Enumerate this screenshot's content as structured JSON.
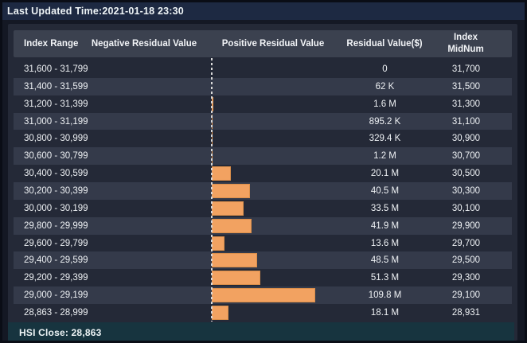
{
  "title_bar": {
    "last_updated": "Last Updated Time:2021-01-18 23:30"
  },
  "table": {
    "columns": [
      "Index Range",
      "Negative Residual Value",
      "Positive Residual Value",
      "Residual Value($)",
      "Index MidNum"
    ],
    "rows": [
      {
        "range": "31,600 - 31,799",
        "value_label": "0",
        "value_usd": 0,
        "midnum": "31,700"
      },
      {
        "range": "31,400 - 31,599",
        "value_label": "62 K",
        "value_usd": 62000,
        "midnum": "31,500"
      },
      {
        "range": "31,200 - 31,399",
        "value_label": "1.6 M",
        "value_usd": 1600000,
        "midnum": "31,300"
      },
      {
        "range": "31,000 - 31,199",
        "value_label": "895.2 K",
        "value_usd": 895200,
        "midnum": "31,100"
      },
      {
        "range": "30,800 - 30,999",
        "value_label": "329.4 K",
        "value_usd": 329400,
        "midnum": "30,900"
      },
      {
        "range": "30,600 - 30,799",
        "value_label": "1.2 M",
        "value_usd": 1200000,
        "midnum": "30,700"
      },
      {
        "range": "30,400 - 30,599",
        "value_label": "20.1 M",
        "value_usd": 20100000,
        "midnum": "30,500"
      },
      {
        "range": "30,200 - 30,399",
        "value_label": "40.5 M",
        "value_usd": 40500000,
        "midnum": "30,300"
      },
      {
        "range": "30,000 - 30,199",
        "value_label": "33.5 M",
        "value_usd": 33500000,
        "midnum": "30,100"
      },
      {
        "range": "29,800 - 29,999",
        "value_label": "41.9 M",
        "value_usd": 41900000,
        "midnum": "29,900"
      },
      {
        "range": "29,600 - 29,799",
        "value_label": "13.6 M",
        "value_usd": 13600000,
        "midnum": "29,700"
      },
      {
        "range": "29,400 - 29,599",
        "value_label": "48.5 M",
        "value_usd": 48500000,
        "midnum": "29,500"
      },
      {
        "range": "29,200 - 29,399",
        "value_label": "51.3 M",
        "value_usd": 51300000,
        "midnum": "29,300"
      },
      {
        "range": "29,000 - 29,199",
        "value_label": "109.8 M",
        "value_usd": 109800000,
        "midnum": "29,100"
      },
      {
        "range": "28,863 - 28,999",
        "value_label": "18.1 M",
        "value_usd": 18100000,
        "midnum": "28,931"
      }
    ]
  },
  "footer": {
    "hsi_close": "HSI Close: 28,863"
  },
  "colors": {
    "bar_fill": "#F2A261",
    "bar_border": "#DB8F4B",
    "baseline_dash": "#D8D8D8",
    "header_bg": "#3B414F",
    "row_alt_bg": "#343A4A",
    "panel_bg": "#242937",
    "title_bg": "#1D2942",
    "footer_bg": "#17343F",
    "page_bg": "#141824"
  },
  "chart_data": {
    "type": "bar",
    "orientation": "horizontal",
    "title": "Last Updated Time:2021-01-18 23:30",
    "categories": [
      "31,600 - 31,799",
      "31,400 - 31,599",
      "31,200 - 31,399",
      "31,000 - 31,199",
      "30,800 - 30,999",
      "30,600 - 30,799",
      "30,400 - 30,599",
      "30,200 - 30,399",
      "30,000 - 30,199",
      "29,800 - 29,999",
      "29,600 - 29,799",
      "29,400 - 29,599",
      "29,200 - 29,399",
      "29,000 - 29,199",
      "28,863 - 28,999"
    ],
    "series": [
      {
        "name": "Positive Residual Value",
        "values": [
          0,
          62000,
          1600000,
          895200,
          329400,
          1200000,
          20100000,
          40500000,
          33500000,
          41900000,
          13600000,
          48500000,
          51300000,
          109800000,
          18100000
        ]
      },
      {
        "name": "Negative Residual Value",
        "values": [
          0,
          0,
          0,
          0,
          0,
          0,
          0,
          0,
          0,
          0,
          0,
          0,
          0,
          0,
          0
        ]
      }
    ],
    "value_labels": [
      "0",
      "62 K",
      "1.6 M",
      "895.2 K",
      "329.4 K",
      "1.2 M",
      "20.1 M",
      "40.5 M",
      "33.5 M",
      "41.9 M",
      "13.6 M",
      "48.5 M",
      "51.3 M",
      "109.8 M",
      "18.1 M"
    ],
    "index_midnum": [
      "31,700",
      "31,500",
      "31,300",
      "31,100",
      "30,900",
      "30,700",
      "30,500",
      "30,300",
      "30,100",
      "29,900",
      "29,700",
      "29,500",
      "29,300",
      "29,100",
      "28,931"
    ],
    "ylabel": "Index Range",
    "xlabel": "Residual Value($)",
    "xlim": [
      0,
      109800000
    ],
    "grid": false,
    "legend_position": "column-headers",
    "annotation": "HSI Close: 28,863",
    "baseline": "dashed vertical line at 0 between negative and positive columns"
  }
}
